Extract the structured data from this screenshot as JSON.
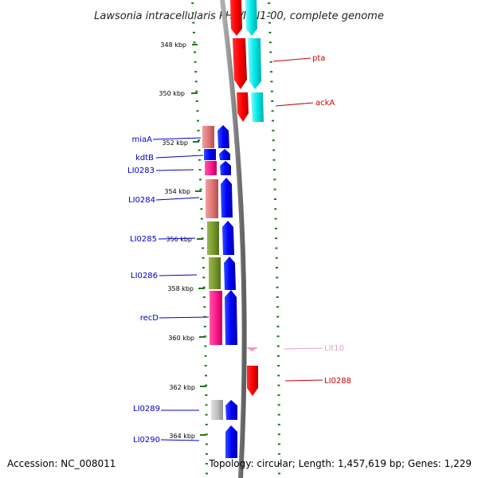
{
  "header": {
    "title": "Lawsonia intracellularis PHE/MN1-00, complete genome"
  },
  "footer": {
    "accession": "Accession: NC_008011",
    "summary": "Topology: circular; Length: 1,457,619 bp; Genes: 1,229"
  },
  "scale": {
    "labels": [
      "348 kbp",
      "350 kbp",
      "352 kbp",
      "354 kbp",
      "356 kbp",
      "358 kbp",
      "360 kbp",
      "362 kbp",
      "364 kbp"
    ],
    "tick_color": "#1a7a1a"
  },
  "genes": [
    {
      "label": "pta",
      "color": "#cc0000"
    },
    {
      "label": "ackA",
      "color": "#cc0000"
    },
    {
      "label": "miaA",
      "color": "#0000cc"
    },
    {
      "label": "kdtB",
      "color": "#0000cc"
    },
    {
      "label": "LI0283",
      "color": "#0000cc"
    },
    {
      "label": "LI0284",
      "color": "#0000cc"
    },
    {
      "label": "LI0285",
      "color": "#0000cc"
    },
    {
      "label": "LI0286",
      "color": "#0000cc"
    },
    {
      "label": "recD",
      "color": "#0000cc"
    },
    {
      "label": "Llt10",
      "color": "#e8a0c0"
    },
    {
      "label": "LI0288",
      "color": "#cc0000"
    },
    {
      "label": "LI0289",
      "color": "#0000cc"
    },
    {
      "label": "LI0290",
      "color": "#0000cc"
    }
  ],
  "colors": {
    "forward_cds": "#ff0000",
    "reverse_cds": "#0000ff",
    "forward_cog": "#00e5e5",
    "trna": "#ff8fc0",
    "cog_salmon": "#e08080",
    "cog_olive": "#7a9a30",
    "cog_pink": "#ff1a8c",
    "cog_grey": "#b8b8b8",
    "backbone": "#888888"
  }
}
